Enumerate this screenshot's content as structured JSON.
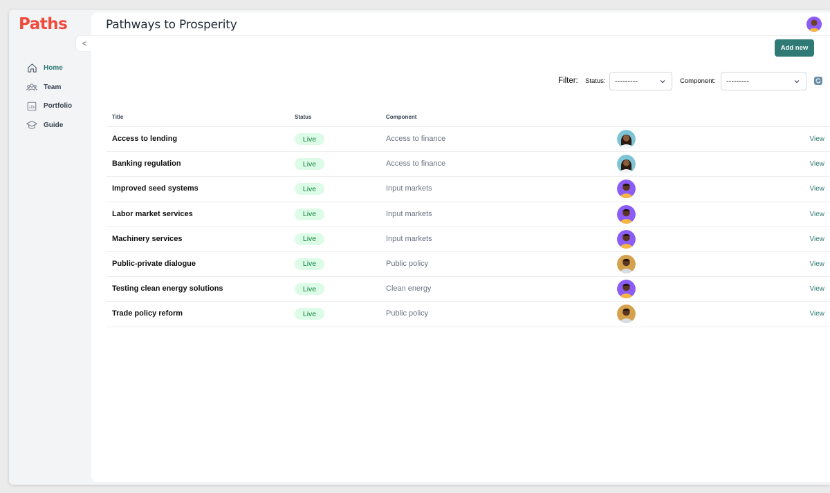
{
  "app": {
    "logo": "Paths",
    "collapse_label": "<"
  },
  "sidebar": {
    "items": [
      {
        "label": "Home",
        "icon": "home-icon",
        "active": true
      },
      {
        "label": "Team",
        "icon": "team-icon",
        "active": false
      },
      {
        "label": "Portfolio",
        "icon": "portfolio-icon",
        "active": false
      },
      {
        "label": "Guide",
        "icon": "guide-icon",
        "active": false
      }
    ]
  },
  "header": {
    "title": "Pathways to Prosperity"
  },
  "toolbar": {
    "add_label": "Add new"
  },
  "filters": {
    "label": "Filter:",
    "status": {
      "label": "Status:",
      "value": "---------"
    },
    "component": {
      "label": "Component:",
      "value": "---------"
    }
  },
  "table": {
    "headers": {
      "title": "Title",
      "status": "Status",
      "component": "Component"
    },
    "rows": [
      {
        "title": "Access to lending",
        "status": "Live",
        "component": "Access to finance",
        "avatar": "woman-teal",
        "action": "View"
      },
      {
        "title": "Banking regulation",
        "status": "Live",
        "component": "Access to finance",
        "avatar": "woman-teal",
        "action": "View"
      },
      {
        "title": "Improved seed systems",
        "status": "Live",
        "component": "Input markets",
        "avatar": "man-purple",
        "action": "View"
      },
      {
        "title": "Labor market services",
        "status": "Live",
        "component": "Input markets",
        "avatar": "man-purple",
        "action": "View"
      },
      {
        "title": "Machinery services",
        "status": "Live",
        "component": "Input markets",
        "avatar": "man-purple",
        "action": "View"
      },
      {
        "title": "Public-private dialogue",
        "status": "Live",
        "component": "Public policy",
        "avatar": "man-gold",
        "action": "View"
      },
      {
        "title": "Testing clean energy solutions",
        "status": "Live",
        "component": "Clean energy",
        "avatar": "man-purple",
        "action": "View"
      },
      {
        "title": "Trade policy reform",
        "status": "Live",
        "component": "Public policy",
        "avatar": "man-gold",
        "action": "View"
      }
    ]
  },
  "colors": {
    "accent": "#2f7a74",
    "logo": "#ef4b3d",
    "live_bg": "#dcfce7",
    "live_text": "#15803d",
    "avatar_teal": "#7cc4d6",
    "avatar_purple": "#8b5cf6",
    "avatar_gold": "#d4a24c"
  }
}
